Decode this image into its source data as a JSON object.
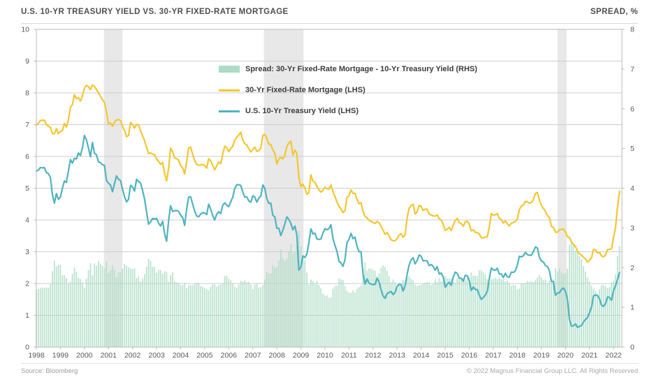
{
  "header": {
    "title": "U.S. 10-YR TREASURY YIELD VS. 30-YR FIXED-RATE MORTGAGE",
    "right_label": "SPREAD, %"
  },
  "footer": {
    "source": "Source: Bloomberg",
    "copyright": "© 2022 Magnus Financial Group LLC. All Rights Reserved"
  },
  "legend": {
    "items": [
      {
        "label": "Spread: 30-Yr Fixed-Rate Mortgage - 10-Yr Treasury Yield (RHS)",
        "swatch": "bar",
        "color": "#abdcc6"
      },
      {
        "label": "30-Yr Fixed-Rate Mortgage (LHS)",
        "swatch": "line",
        "color": "#f4c630"
      },
      {
        "label": "U.S. 10-Yr Treasury Yield (LHS)",
        "swatch": "line",
        "color": "#4fb3bf"
      }
    ]
  },
  "colors": {
    "mortgage_line": "#f4c630",
    "treasury_line": "#4fb3bf",
    "spread_bar": "#abdcc6",
    "recession_band": "#e8e8e8",
    "gridline": "#cdcdcd",
    "plot_border": "#b9b9b9",
    "axis_text": "#595959"
  },
  "chart_data": {
    "type": "line+bar",
    "title": "U.S. 10-YR TREASURY YIELD VS. 30-YR FIXED-RATE MORTGAGE",
    "frequency": "monthly",
    "x_domain": [
      1998,
      2022.35
    ],
    "x_tick_labels": [
      "1998",
      "1999",
      "2000",
      "2001",
      "2002",
      "2003",
      "2004",
      "2005",
      "2006",
      "2007",
      "2008",
      "2009",
      "2010",
      "2011",
      "2012",
      "2013",
      "2014",
      "2015",
      "2016",
      "2017",
      "2018",
      "2019",
      "2020",
      "2021",
      "2022"
    ],
    "left_axis": {
      "min": 0,
      "max": 10,
      "ticks": [
        0,
        1,
        2,
        3,
        4,
        5,
        6,
        7,
        8,
        9,
        10
      ],
      "units": "%"
    },
    "right_axis": {
      "min": 0,
      "max": 8,
      "ticks": [
        0,
        1,
        2,
        3,
        4,
        5,
        6,
        7,
        8
      ],
      "title": "SPREAD, %"
    },
    "recession_bands_years": [
      [
        2000.81,
        2001.58
      ],
      [
        2007.46,
        2009.11
      ],
      [
        2019.67,
        2020.05
      ]
    ],
    "series": [
      {
        "name": "30-Yr Fixed-Rate Mortgage (LHS)",
        "type": "line",
        "axis": "left",
        "color": "#f4c630",
        "values": [
          6.99,
          7.04,
          7.13,
          7.14,
          7.14,
          7.0,
          6.95,
          6.92,
          6.72,
          6.71,
          6.87,
          6.72,
          6.79,
          6.81,
          7.04,
          6.92,
          7.15,
          7.55,
          7.63,
          7.94,
          7.82,
          7.85,
          7.74,
          7.91,
          8.15,
          8.24,
          8.2,
          8.1,
          8.25,
          8.2,
          8.1,
          8.0,
          7.9,
          7.78,
          7.7,
          7.4,
          7.03,
          7.05,
          6.95,
          7.08,
          7.15,
          7.16,
          7.13,
          6.95,
          6.82,
          6.62,
          6.66,
          7.07,
          7.0,
          6.89,
          7.01,
          6.99,
          6.81,
          6.65,
          6.49,
          6.29,
          6.09,
          6.11,
          6.07,
          6.05,
          5.92,
          5.84,
          5.75,
          5.81,
          5.48,
          5.23,
          5.63,
          6.26,
          6.15,
          5.95,
          5.93,
          5.88,
          5.71,
          5.64,
          5.45,
          5.83,
          6.27,
          6.29,
          6.06,
          5.87,
          5.75,
          5.72,
          5.73,
          5.75,
          5.71,
          5.63,
          5.93,
          5.86,
          5.72,
          5.58,
          5.7,
          5.82,
          5.77,
          6.07,
          6.33,
          6.27,
          6.15,
          6.25,
          6.32,
          6.51,
          6.6,
          6.68,
          6.76,
          6.52,
          6.4,
          6.36,
          6.24,
          6.14,
          6.22,
          6.29,
          6.16,
          6.18,
          6.26,
          6.66,
          6.7,
          6.57,
          6.38,
          6.38,
          6.21,
          6.1,
          5.76,
          5.92,
          5.97,
          5.92,
          6.04,
          6.32,
          6.43,
          6.48,
          6.04,
          6.2,
          6.09,
          5.33,
          5.05,
          5.13,
          5.0,
          4.81,
          4.86,
          5.42,
          5.22,
          5.19,
          5.06,
          4.95,
          4.88,
          4.93,
          5.03,
          4.99,
          4.97,
          5.1,
          4.89,
          4.74,
          4.56,
          4.43,
          4.35,
          4.23,
          4.3,
          4.71,
          4.76,
          4.95,
          4.84,
          4.84,
          4.64,
          4.51,
          4.55,
          4.27,
          4.11,
          4.07,
          3.99,
          3.96,
          3.92,
          3.89,
          3.95,
          3.91,
          3.8,
          3.68,
          3.55,
          3.6,
          3.5,
          3.38,
          3.35,
          3.35,
          3.41,
          3.53,
          3.57,
          3.45,
          3.54,
          4.07,
          4.37,
          4.46,
          4.49,
          4.19,
          4.26,
          4.46,
          4.43,
          4.3,
          4.34,
          4.34,
          4.19,
          4.16,
          4.13,
          4.12,
          4.16,
          4.04,
          4.0,
          3.86,
          3.67,
          3.71,
          3.77,
          3.67,
          3.84,
          3.98,
          4.05,
          3.91,
          3.89,
          3.8,
          3.94,
          3.96,
          3.87,
          3.66,
          3.69,
          3.61,
          3.6,
          3.57,
          3.44,
          3.44,
          3.46,
          3.47,
          3.77,
          4.2,
          4.15,
          4.17,
          4.2,
          4.05,
          4.01,
          3.9,
          3.97,
          3.88,
          3.81,
          3.9,
          3.92,
          3.95,
          4.03,
          4.33,
          4.44,
          4.47,
          4.59,
          4.57,
          4.53,
          4.55,
          4.63,
          4.83,
          4.87,
          4.64,
          4.46,
          4.37,
          4.27,
          4.14,
          4.07,
          3.8,
          3.77,
          3.62,
          3.61,
          3.69,
          3.7,
          3.72,
          3.62,
          3.47,
          3.45,
          3.31,
          3.23,
          3.16,
          3.02,
          2.94,
          2.89,
          2.83,
          2.77,
          2.68,
          2.74,
          2.81,
          3.08,
          3.06,
          2.96,
          2.98,
          2.87,
          2.84,
          2.9,
          3.07,
          3.07,
          3.1,
          3.45,
          3.76,
          4.42,
          4.9
        ]
      },
      {
        "name": "U.S. 10-Yr Treasury Yield (LHS)",
        "type": "line",
        "axis": "left",
        "color": "#4fb3bf",
        "values": [
          5.54,
          5.57,
          5.65,
          5.64,
          5.65,
          5.5,
          5.46,
          5.34,
          4.81,
          4.53,
          4.83,
          4.65,
          4.72,
          5.0,
          5.23,
          5.18,
          5.54,
          5.9,
          5.79,
          5.94,
          5.92,
          6.11,
          6.03,
          6.28,
          6.66,
          6.52,
          6.26,
          5.99,
          6.44,
          6.1,
          6.05,
          5.83,
          5.8,
          5.74,
          5.72,
          5.24,
          5.16,
          5.1,
          4.89,
          5.14,
          5.39,
          5.28,
          5.24,
          4.97,
          4.73,
          4.57,
          4.65,
          5.09,
          5.04,
          4.91,
          5.28,
          5.21,
          5.16,
          4.93,
          4.65,
          4.26,
          3.87,
          3.94,
          4.05,
          4.03,
          4.05,
          3.9,
          3.81,
          3.96,
          3.57,
          3.33,
          3.98,
          4.45,
          4.27,
          4.29,
          4.3,
          4.27,
          4.15,
          4.08,
          3.83,
          4.35,
          4.72,
          4.73,
          4.5,
          4.28,
          4.13,
          4.1,
          4.19,
          4.23,
          4.22,
          4.17,
          4.5,
          4.34,
          4.14,
          4.0,
          4.18,
          4.26,
          4.2,
          4.46,
          4.54,
          4.47,
          4.42,
          4.57,
          4.72,
          4.99,
          5.11,
          5.11,
          5.09,
          4.88,
          4.72,
          4.73,
          4.6,
          4.56,
          4.76,
          4.72,
          4.56,
          4.69,
          4.75,
          5.1,
          5.0,
          4.67,
          4.52,
          4.53,
          4.15,
          4.1,
          3.74,
          3.74,
          3.51,
          3.68,
          3.88,
          4.1,
          4.01,
          3.89,
          3.69,
          3.81,
          3.53,
          2.42,
          2.52,
          2.87,
          2.82,
          2.93,
          3.29,
          3.72,
          3.56,
          3.59,
          3.4,
          3.39,
          3.4,
          3.59,
          3.73,
          3.69,
          3.73,
          3.85,
          3.42,
          3.2,
          3.01,
          2.7,
          2.65,
          2.54,
          2.76,
          3.29,
          3.39,
          3.58,
          3.41,
          3.46,
          3.17,
          3.0,
          3.0,
          2.3,
          1.98,
          2.15,
          2.01,
          1.98,
          1.97,
          1.97,
          2.17,
          2.05,
          1.8,
          1.62,
          1.53,
          1.68,
          1.72,
          1.75,
          1.65,
          1.72,
          1.91,
          1.98,
          1.96,
          1.76,
          1.93,
          2.3,
          2.58,
          2.74,
          2.81,
          2.62,
          2.72,
          2.9,
          2.86,
          2.71,
          2.72,
          2.71,
          2.56,
          2.6,
          2.54,
          2.42,
          2.53,
          2.3,
          2.33,
          2.21,
          1.88,
          1.98,
          2.04,
          1.94,
          2.2,
          2.36,
          2.32,
          2.17,
          2.17,
          2.07,
          2.26,
          2.24,
          2.09,
          1.78,
          1.89,
          1.81,
          1.81,
          1.64,
          1.5,
          1.56,
          1.63,
          1.76,
          2.14,
          2.49,
          2.43,
          2.42,
          2.48,
          2.3,
          2.3,
          2.19,
          2.32,
          2.21,
          2.2,
          2.36,
          2.35,
          2.4,
          2.58,
          2.86,
          2.84,
          2.87,
          2.98,
          2.91,
          2.89,
          2.89,
          3.0,
          3.15,
          3.12,
          2.83,
          2.71,
          2.68,
          2.57,
          2.53,
          2.4,
          2.07,
          2.06,
          1.63,
          1.7,
          1.71,
          1.81,
          1.86,
          1.76,
          1.5,
          0.87,
          0.66,
          0.67,
          0.73,
          0.62,
          0.65,
          0.68,
          0.79,
          0.87,
          0.93,
          1.08,
          1.26,
          1.61,
          1.64,
          1.62,
          1.52,
          1.32,
          1.28,
          1.37,
          1.58,
          1.56,
          1.47,
          1.78,
          1.93,
          2.13,
          2.35
        ]
      },
      {
        "name": "Spread: 30-Yr Fixed-Rate Mortgage - 10-Yr Treasury Yield (RHS)",
        "type": "bar",
        "axis": "right",
        "color": "#abdcc6",
        "derived": "mortgage_values minus treasury_values, month by month"
      }
    ]
  }
}
